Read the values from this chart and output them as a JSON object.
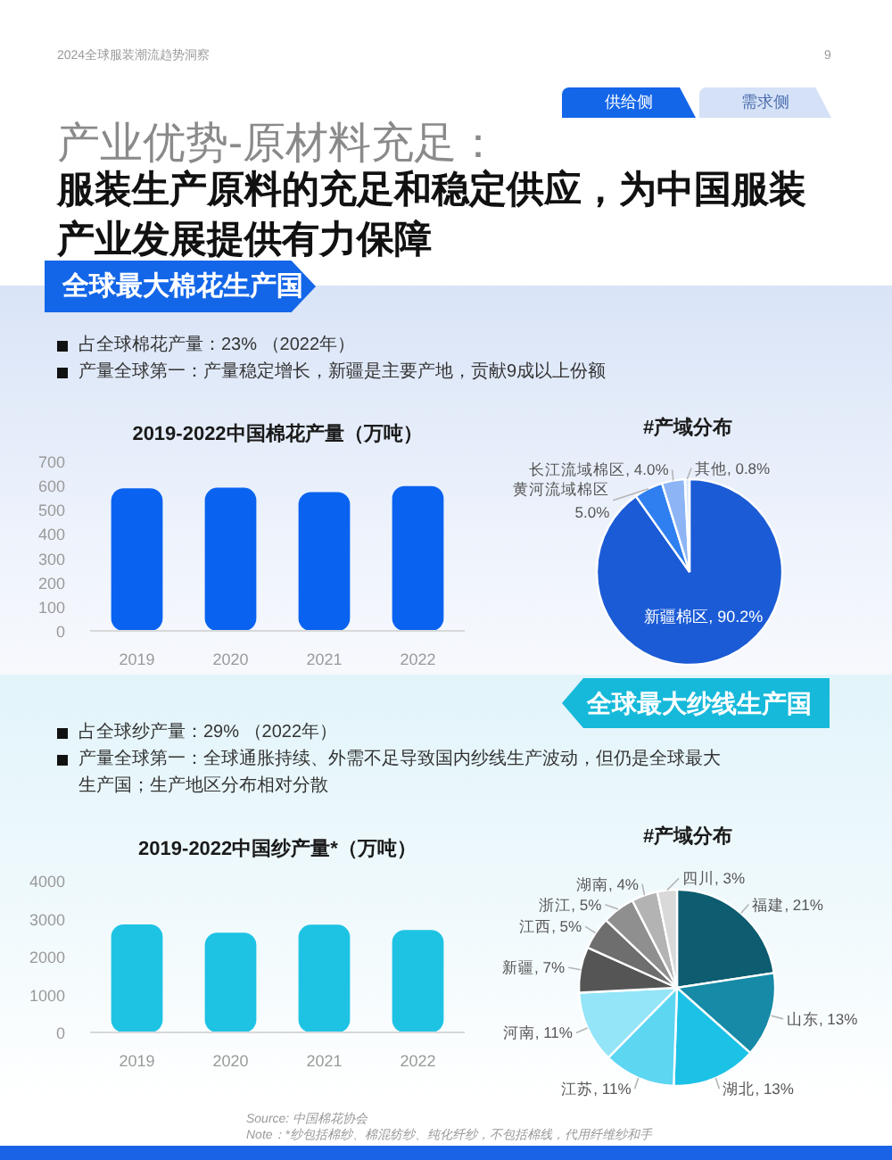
{
  "chart_data": [
    {
      "type": "other",
      "title": "产业优势-原材料充足：",
      "subtitle": "服装生产原料的充足和稳定供应，为中国服装产业发展提供有力保障",
      "annotations": [
        "2024全球服装潮流趋势洞察",
        "9",
        "供给侧",
        "需求侧",
        "全球最大棉花生产国",
        "占全球棉花产量：23% （2022年）",
        "产量全球第一：产量稳定增长，新疆是主要产地，贡献9成以上份额"
      ]
    },
    {
      "type": "bar",
      "title": "2019-2022中国棉花产量（万吨）",
      "categories": [
        "2019",
        "2020",
        "2021",
        "2022"
      ],
      "values": [
        589,
        591,
        573,
        598
      ],
      "color": "#0a63f0",
      "ylim": [
        0,
        700
      ],
      "yticks": [
        0,
        100,
        200,
        300,
        400,
        500,
        600,
        700
      ]
    },
    {
      "type": "pie",
      "title": "#产域分布",
      "categories": [
        "新疆棉区",
        "黄河流域棉区",
        "长江流域棉区",
        "其他"
      ],
      "values": [
        90.2,
        5.0,
        4.0,
        0.8
      ],
      "value_labels": [
        "90.2%",
        "5.0%",
        "4.0%",
        "0.8%"
      ],
      "colors": [
        "#1b5bd6",
        "#2f7ff0",
        "#8db5f5",
        "#dce7fb"
      ]
    },
    {
      "type": "other",
      "annotations": [
        "全球最大纱线生产国",
        "占全球纱产量：29% （2022年）",
        "产量全球第一：全球通胀持续、外需不足导致国内纱线生产波动，但仍是全球最大生产国；生产地区分布相对分散"
      ]
    },
    {
      "type": "bar",
      "title": "2019-2022中国纱产量*（万吨）",
      "categories": [
        "2019",
        "2020",
        "2021",
        "2022"
      ],
      "values": [
        2850,
        2630,
        2840,
        2700
      ],
      "color": "#1ec3e4",
      "ylim": [
        0,
        4000
      ],
      "yticks": [
        0,
        1000,
        2000,
        3000,
        4000
      ]
    },
    {
      "type": "pie",
      "title": "#产域分布",
      "categories": [
        "福建",
        "山东",
        "湖北",
        "江苏",
        "河南",
        "新疆",
        "江西",
        "浙江",
        "湖南",
        "四川"
      ],
      "values": [
        21,
        13,
        13,
        11,
        11,
        7,
        5,
        5,
        4,
        3
      ],
      "value_labels": [
        "21%",
        "13%",
        "13%",
        "11%",
        "11%",
        "7%",
        "5%",
        "5%",
        "4%",
        "3%"
      ],
      "colors": [
        "#0d5c70",
        "#168aa6",
        "#1cc2e6",
        "#5dd6f2",
        "#93e5f7",
        "#555555",
        "#6e6e6e",
        "#8f8f8f",
        "#b3b3b3",
        "#d9d9d9"
      ]
    },
    {
      "type": "other",
      "annotations": [
        "Source: 中国棉花协会",
        "Note：*纱包括棉纱、棉混纺纱、纯化纤纱，不包括棉线，代用纤维纱和手"
      ]
    }
  ]
}
